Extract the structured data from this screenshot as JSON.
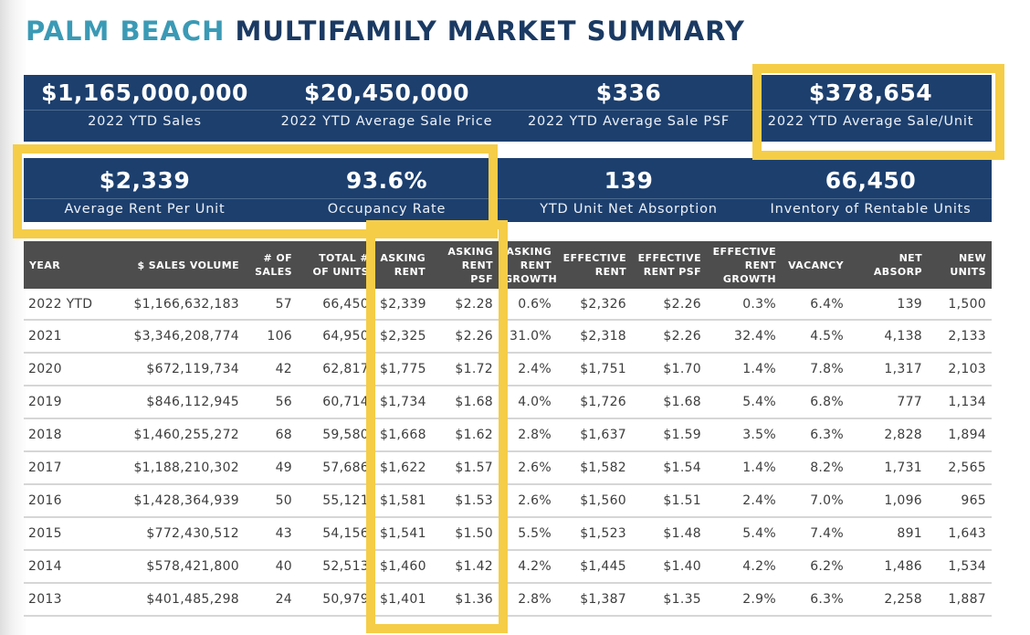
{
  "header": {
    "title_accent": "PALM BEACH",
    "title_main": "MULTIFAMILY MARKET SUMMARY"
  },
  "kpis_row1": [
    {
      "value": "$1,165,000,000",
      "label": "2022 YTD Sales"
    },
    {
      "value": "$20,450,000",
      "label": "2022 YTD Average Sale Price"
    },
    {
      "value": "$336",
      "label": "2022 YTD Average Sale PSF"
    },
    {
      "value": "$378,654",
      "label": "2022 YTD Average Sale/Unit"
    }
  ],
  "kpis_row2": [
    {
      "value": "$2,339",
      "label": "Average Rent Per Unit"
    },
    {
      "value": "93.6%",
      "label": "Occupancy Rate"
    },
    {
      "value": "139",
      "label": "YTD Unit Net Absorption"
    },
    {
      "value": "66,450",
      "label": "Inventory of Rentable Units"
    }
  ],
  "table": {
    "headers": [
      [
        "YEAR"
      ],
      [
        "$ SALES VOLUME"
      ],
      [
        "# OF",
        "SALES"
      ],
      [
        "TOTAL #",
        "OF UNITS"
      ],
      [
        "ASKING",
        "RENT"
      ],
      [
        "ASKING",
        "RENT",
        "PSF"
      ],
      [
        "ASKING",
        "RENT",
        "GROWTH"
      ],
      [
        "EFFECTIVE",
        "RENT"
      ],
      [
        "EFFECTIVE",
        "RENT PSF"
      ],
      [
        "EFFECTIVE",
        "RENT",
        "GROWTH"
      ],
      [
        "VACANCY"
      ],
      [
        "NET",
        "ABSORP"
      ],
      [
        "NEW",
        "UNITS"
      ]
    ],
    "rows": [
      [
        "2022 YTD",
        "$1,166,632,183",
        "57",
        "66,450",
        "$2,339",
        "$2.28",
        "0.6%",
        "$2,326",
        "$2.26",
        "0.3%",
        "6.4%",
        "139",
        "1,500"
      ],
      [
        "2021",
        "$3,346,208,774",
        "106",
        "64,950",
        "$2,325",
        "$2.26",
        "31.0%",
        "$2,318",
        "$2.26",
        "32.4%",
        "4.5%",
        "4,138",
        "2,133"
      ],
      [
        "2020",
        "$672,119,734",
        "42",
        "62,817",
        "$1,775",
        "$1.72",
        "2.4%",
        "$1,751",
        "$1.70",
        "1.4%",
        "7.8%",
        "1,317",
        "2,103"
      ],
      [
        "2019",
        "$846,112,945",
        "56",
        "60,714",
        "$1,734",
        "$1.68",
        "4.0%",
        "$1,726",
        "$1.68",
        "5.4%",
        "6.8%",
        "777",
        "1,134"
      ],
      [
        "2018",
        "$1,460,255,272",
        "68",
        "59,580",
        "$1,668",
        "$1.62",
        "2.8%",
        "$1,637",
        "$1.59",
        "3.5%",
        "6.3%",
        "2,828",
        "1,894"
      ],
      [
        "2017",
        "$1,188,210,302",
        "49",
        "57,686",
        "$1,622",
        "$1.57",
        "2.6%",
        "$1,582",
        "$1.54",
        "1.4%",
        "8.2%",
        "1,731",
        "2,565"
      ],
      [
        "2016",
        "$1,428,364,939",
        "50",
        "55,121",
        "$1,581",
        "$1.53",
        "2.6%",
        "$1,560",
        "$1.51",
        "2.4%",
        "7.0%",
        "1,096",
        "965"
      ],
      [
        "2015",
        "$772,430,512",
        "43",
        "54,156",
        "$1,541",
        "$1.50",
        "5.5%",
        "$1,523",
        "$1.48",
        "5.4%",
        "7.4%",
        "891",
        "1,643"
      ],
      [
        "2014",
        "$578,421,800",
        "40",
        "52,513",
        "$1,460",
        "$1.42",
        "4.2%",
        "$1,445",
        "$1.40",
        "4.2%",
        "6.2%",
        "1,486",
        "1,534"
      ],
      [
        "2013",
        "$401,485,298",
        "24",
        "50,979",
        "$1,401",
        "$1.36",
        "2.8%",
        "$1,387",
        "$1.35",
        "2.9%",
        "6.3%",
        "2,258",
        "1,887"
      ]
    ]
  },
  "colors": {
    "title_accent": "#3b9ab5",
    "title_main": "#1b3a63",
    "kpi_background": "#1c3f6e",
    "table_header": "#4d4d4d",
    "highlight": "#f5cd47"
  }
}
